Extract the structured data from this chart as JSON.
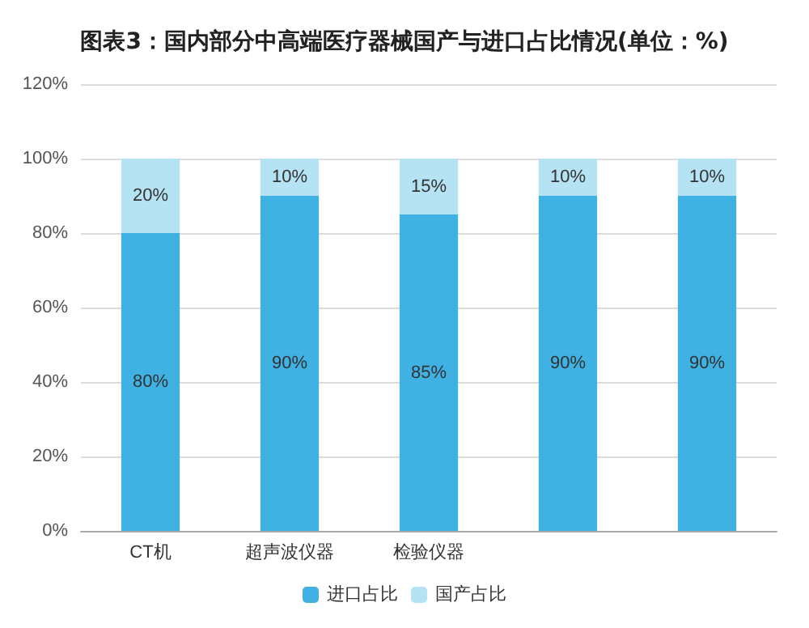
{
  "chart_data": {
    "type": "bar",
    "title": "图表3：国内部分中高端医疗器械国产与进口占比情况(单位：%)",
    "stacked": true,
    "categories": [
      "CT机",
      "超声波仪器",
      "检验仪器",
      null,
      null
    ],
    "series": [
      {
        "name": "进口占比",
        "color": "#3fb1e3",
        "values": [
          80,
          90,
          85,
          90,
          90
        ],
        "value_labels": [
          "80%",
          "90%",
          "85%",
          "90%",
          "90%"
        ]
      },
      {
        "name": "国产占比",
        "color": "#b5e3f4",
        "values": [
          20,
          10,
          15,
          10,
          10
        ],
        "value_labels": [
          "20%",
          "10%",
          "15%",
          "10%",
          "10%"
        ]
      }
    ],
    "ylim": [
      0,
      120
    ],
    "yticks": [
      {
        "value": 0,
        "label": "0%"
      },
      {
        "value": 20,
        "label": "20%"
      },
      {
        "value": 40,
        "label": "40%"
      },
      {
        "value": 60,
        "label": "60%"
      },
      {
        "value": 80,
        "label": "80%"
      },
      {
        "value": 100,
        "label": "100%"
      },
      {
        "value": 120,
        "label": "120%"
      }
    ],
    "grid": "y",
    "legend": "bottom"
  }
}
